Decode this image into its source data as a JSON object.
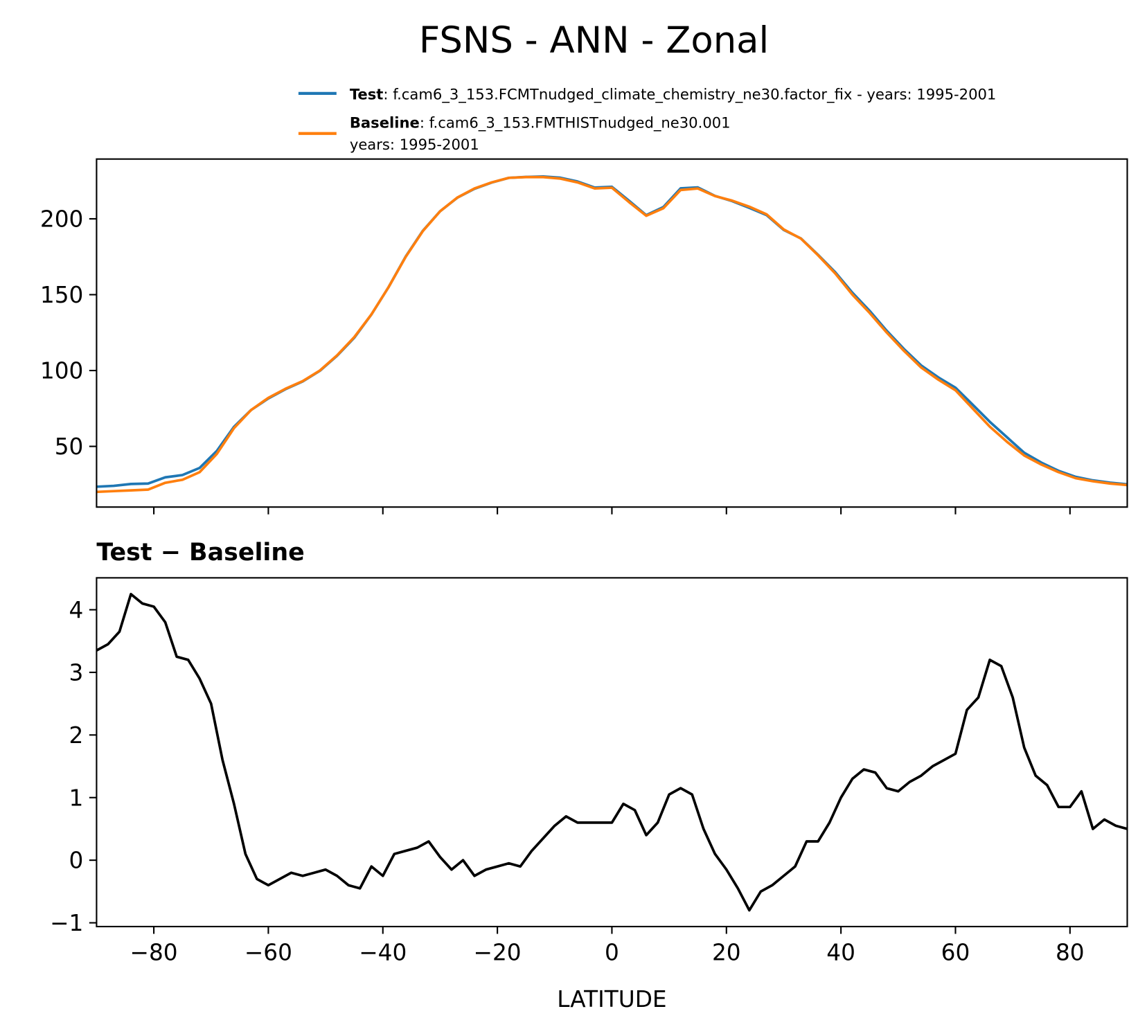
{
  "title": "FSNS - ANN - Zonal",
  "chart_data": [
    {
      "type": "line",
      "x": [
        -90,
        -87,
        -84,
        -81,
        -78,
        -75,
        -72,
        -69,
        -66,
        -63,
        -60,
        -57,
        -54,
        -51,
        -48,
        -45,
        -42,
        -39,
        -36,
        -33,
        -30,
        -27,
        -24,
        -21,
        -18,
        -15,
        -12,
        -9,
        -6,
        -3,
        0,
        3,
        6,
        9,
        12,
        15,
        18,
        21,
        24,
        27,
        30,
        33,
        36,
        39,
        42,
        45,
        48,
        51,
        54,
        57,
        60,
        63,
        66,
        69,
        72,
        75,
        78,
        81,
        84,
        87,
        90
      ],
      "series": [
        {
          "name": "Test",
          "description_lines": [
            ": f.cam6_3_153.FCMTnudged_climate_chemistry_ne30.factor_fix - years: 1995-2001"
          ],
          "color": "#1f77b4",
          "values": [
            23.4,
            24,
            25.2,
            25.5,
            29.6,
            31.1,
            35.8,
            47,
            62.9,
            74,
            81.6,
            87.7,
            92.8,
            99.8,
            109.7,
            121.6,
            136.9,
            155,
            175.2,
            192.2,
            205,
            213.9,
            219.8,
            223.9,
            227,
            227.6,
            227.9,
            227.1,
            224.6,
            220.6,
            221.1,
            211.9,
            202.4,
            207.8,
            220.1,
            220.7,
            215.1,
            211.7,
            207.2,
            202.5,
            192.7,
            187.1,
            176.3,
            164.8,
            151.3,
            139.4,
            126.2,
            114.2,
            103.4,
            95.5,
            88.7,
            77.5,
            66.2,
            56,
            45.8,
            39.3,
            33.9,
            29.9,
            27.6,
            26.1,
            25
          ]
        },
        {
          "name": "Baseline",
          "description_lines": [
            ": f.cam6_3_153.FMTHISTnudged_ne30.001",
            "years: 1995-2001"
          ],
          "color": "#ff7f0e",
          "values": [
            20,
            20.5,
            21,
            21.5,
            26,
            28,
            33,
            45,
            62,
            74,
            82,
            88,
            93,
            100,
            110,
            122,
            137,
            155,
            175,
            192,
            205,
            214,
            220,
            224,
            227,
            227.5,
            227.5,
            226.5,
            224,
            220,
            220.5,
            211,
            202,
            207,
            219,
            220,
            215,
            212,
            208,
            203,
            193,
            187,
            176,
            164,
            150,
            138,
            125,
            113,
            102,
            94,
            87,
            75,
            63,
            53,
            44,
            38,
            33,
            29,
            27,
            25.5,
            24.5
          ]
        }
      ],
      "xlim": [
        -90,
        90
      ],
      "xticks": [
        -80,
        -60,
        -40,
        -20,
        0,
        20,
        40,
        60,
        80
      ],
      "ylim": [
        10,
        239.4
      ],
      "yticks": [
        50,
        100,
        150,
        200
      ]
    },
    {
      "type": "line",
      "subtitle": "Test − Baseline",
      "xlabel": "LATITUDE",
      "x": [
        -90,
        -88,
        -86,
        -84,
        -82,
        -80,
        -78,
        -76,
        -74,
        -72,
        -70,
        -68,
        -66,
        -64,
        -62,
        -60,
        -58,
        -56,
        -54,
        -52,
        -50,
        -48,
        -46,
        -44,
        -42,
        -40,
        -38,
        -36,
        -34,
        -32,
        -30,
        -28,
        -26,
        -24,
        -22,
        -20,
        -18,
        -16,
        -14,
        -12,
        -10,
        -8,
        -6,
        -4,
        -2,
        0,
        2,
        4,
        6,
        8,
        10,
        12,
        14,
        16,
        18,
        20,
        22,
        24,
        26,
        28,
        30,
        32,
        34,
        36,
        38,
        40,
        42,
        44,
        46,
        48,
        50,
        52,
        54,
        56,
        58,
        60,
        62,
        64,
        66,
        68,
        70,
        72,
        74,
        76,
        78,
        80,
        82,
        84,
        86,
        88,
        90
      ],
      "series": [
        {
          "color": "#000000",
          "values": [
            3.35,
            3.45,
            3.65,
            4.25,
            4.1,
            4.05,
            3.8,
            3.25,
            3.2,
            2.9,
            2.5,
            1.6,
            0.9,
            0.1,
            -0.3,
            -0.4,
            -0.3,
            -0.2,
            -0.25,
            -0.2,
            -0.15,
            -0.25,
            -0.4,
            -0.45,
            -0.1,
            -0.25,
            0.1,
            0.15,
            0.2,
            0.3,
            0.05,
            -0.15,
            0,
            -0.25,
            -0.15,
            -0.1,
            -0.05,
            -0.1,
            0.15,
            0.35,
            0.55,
            0.7,
            0.6,
            0.6,
            0.6,
            0.6,
            0.9,
            0.8,
            0.4,
            0.6,
            1.05,
            1.15,
            1.05,
            0.5,
            0.1,
            -0.15,
            -0.45,
            -0.8,
            -0.5,
            -0.4,
            -0.25,
            -0.1,
            0.3,
            0.3,
            0.6,
            1,
            1.3,
            1.45,
            1.4,
            1.15,
            1.1,
            1.25,
            1.35,
            1.5,
            1.6,
            1.7,
            2.4,
            2.6,
            3.2,
            3.1,
            2.6,
            1.8,
            1.35,
            1.2,
            0.85,
            0.85,
            1.1,
            0.5,
            0.65,
            0.55,
            0.5
          ]
        }
      ],
      "xlim": [
        -90,
        90
      ],
      "xticks": [
        {
          "value": -80,
          "label": "−80"
        },
        {
          "value": -60,
          "label": "−60"
        },
        {
          "value": -40,
          "label": "−40"
        },
        {
          "value": -20,
          "label": "−20"
        },
        0,
        20,
        40,
        60,
        80
      ],
      "ylim": [
        -1.06,
        4.51
      ],
      "yticks": [
        {
          "value": -1,
          "label": "−1"
        },
        0,
        1,
        2,
        3,
        4
      ]
    }
  ]
}
